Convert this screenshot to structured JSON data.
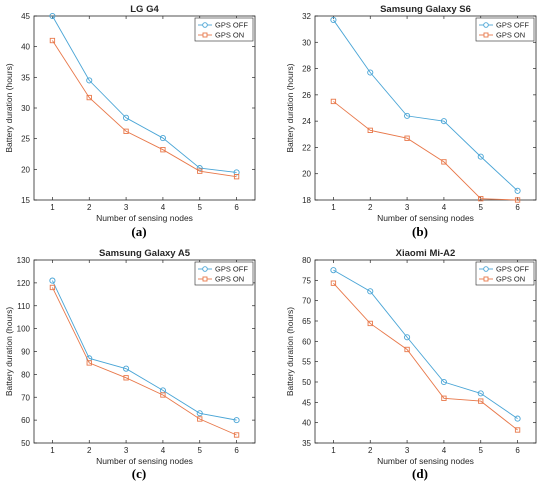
{
  "colors": {
    "gps_off": "#4aa5d6",
    "gps_on": "#e8784a",
    "axis": "#262626",
    "grid": "#dcdcdc"
  },
  "chart_data": [
    {
      "type": "line",
      "caption": "(a)",
      "title": "LG G4",
      "xlabel": "Number of sensing nodes",
      "ylabel": "Battery duration (hours)",
      "x": [
        1,
        2,
        3,
        4,
        5,
        6
      ],
      "xticks": [
        "1",
        "2",
        "3",
        "4",
        "5",
        "6"
      ],
      "xlim": [
        0.5,
        6.5
      ],
      "ylim": [
        15,
        45
      ],
      "yticks": [
        "15",
        "20",
        "25",
        "30",
        "35",
        "40",
        "45"
      ],
      "legend": "top-right",
      "grid": false,
      "series": [
        {
          "name": "GPS OFF",
          "marker": "circle",
          "values": [
            45.0,
            34.5,
            28.4,
            25.1,
            20.2,
            19.5
          ]
        },
        {
          "name": "GPS ON",
          "marker": "square",
          "values": [
            41.0,
            31.7,
            26.2,
            23.2,
            19.7,
            18.8
          ]
        }
      ]
    },
    {
      "type": "line",
      "caption": "(b)",
      "title": "Samsung Galaxy S6",
      "xlabel": "Number of sensing nodes",
      "ylabel": "Battery duration (hours)",
      "x": [
        1,
        2,
        3,
        4,
        5,
        6
      ],
      "xticks": [
        "1",
        "2",
        "3",
        "4",
        "5",
        "6"
      ],
      "xlim": [
        0.5,
        6.5
      ],
      "ylim": [
        18,
        32
      ],
      "yticks": [
        "18",
        "20",
        "22",
        "24",
        "26",
        "28",
        "30",
        "32"
      ],
      "legend": "top-right",
      "grid": false,
      "series": [
        {
          "name": "GPS OFF",
          "marker": "circle",
          "values": [
            31.7,
            27.7,
            24.4,
            24.0,
            21.3,
            18.7
          ]
        },
        {
          "name": "GPS ON",
          "marker": "square",
          "values": [
            25.5,
            23.3,
            22.7,
            20.9,
            18.1,
            18.0
          ]
        }
      ]
    },
    {
      "type": "line",
      "caption": "(c)",
      "title": "Samsung Galaxy A5",
      "xlabel": "Number of sensing nodes",
      "ylabel": "Battery duration (hours)",
      "x": [
        1,
        2,
        3,
        4,
        5,
        6
      ],
      "xticks": [
        "1",
        "2",
        "3",
        "4",
        "5",
        "6"
      ],
      "xlim": [
        0.5,
        6.5
      ],
      "ylim": [
        50,
        130
      ],
      "yticks": [
        "50",
        "60",
        "70",
        "80",
        "90",
        "100",
        "110",
        "120",
        "130"
      ],
      "legend": "top-right",
      "grid": false,
      "series": [
        {
          "name": "GPS OFF",
          "marker": "circle",
          "values": [
            121,
            87,
            82.5,
            73,
            63,
            60
          ]
        },
        {
          "name": "GPS ON",
          "marker": "square",
          "values": [
            118,
            85,
            78.5,
            71,
            60.5,
            53.5
          ]
        }
      ]
    },
    {
      "type": "line",
      "caption": "(d)",
      "title": "Xiaomi Mi-A2",
      "xlabel": "Number of sensing nodes",
      "ylabel": "Battery duration (hours)",
      "x": [
        1,
        2,
        3,
        4,
        5,
        6
      ],
      "xticks": [
        "1",
        "2",
        "3",
        "4",
        "5",
        "6"
      ],
      "xlim": [
        0.5,
        6.5
      ],
      "ylim": [
        35,
        80
      ],
      "yticks": [
        "35",
        "40",
        "45",
        "50",
        "55",
        "60",
        "65",
        "70",
        "75",
        "80"
      ],
      "legend": "top-right",
      "grid": false,
      "series": [
        {
          "name": "GPS OFF",
          "marker": "circle",
          "values": [
            77.5,
            72.3,
            61.0,
            50.0,
            47.2,
            41.0
          ]
        },
        {
          "name": "GPS ON",
          "marker": "square",
          "values": [
            74.3,
            64.4,
            58.0,
            46.0,
            45.3,
            38.2
          ]
        }
      ]
    }
  ]
}
